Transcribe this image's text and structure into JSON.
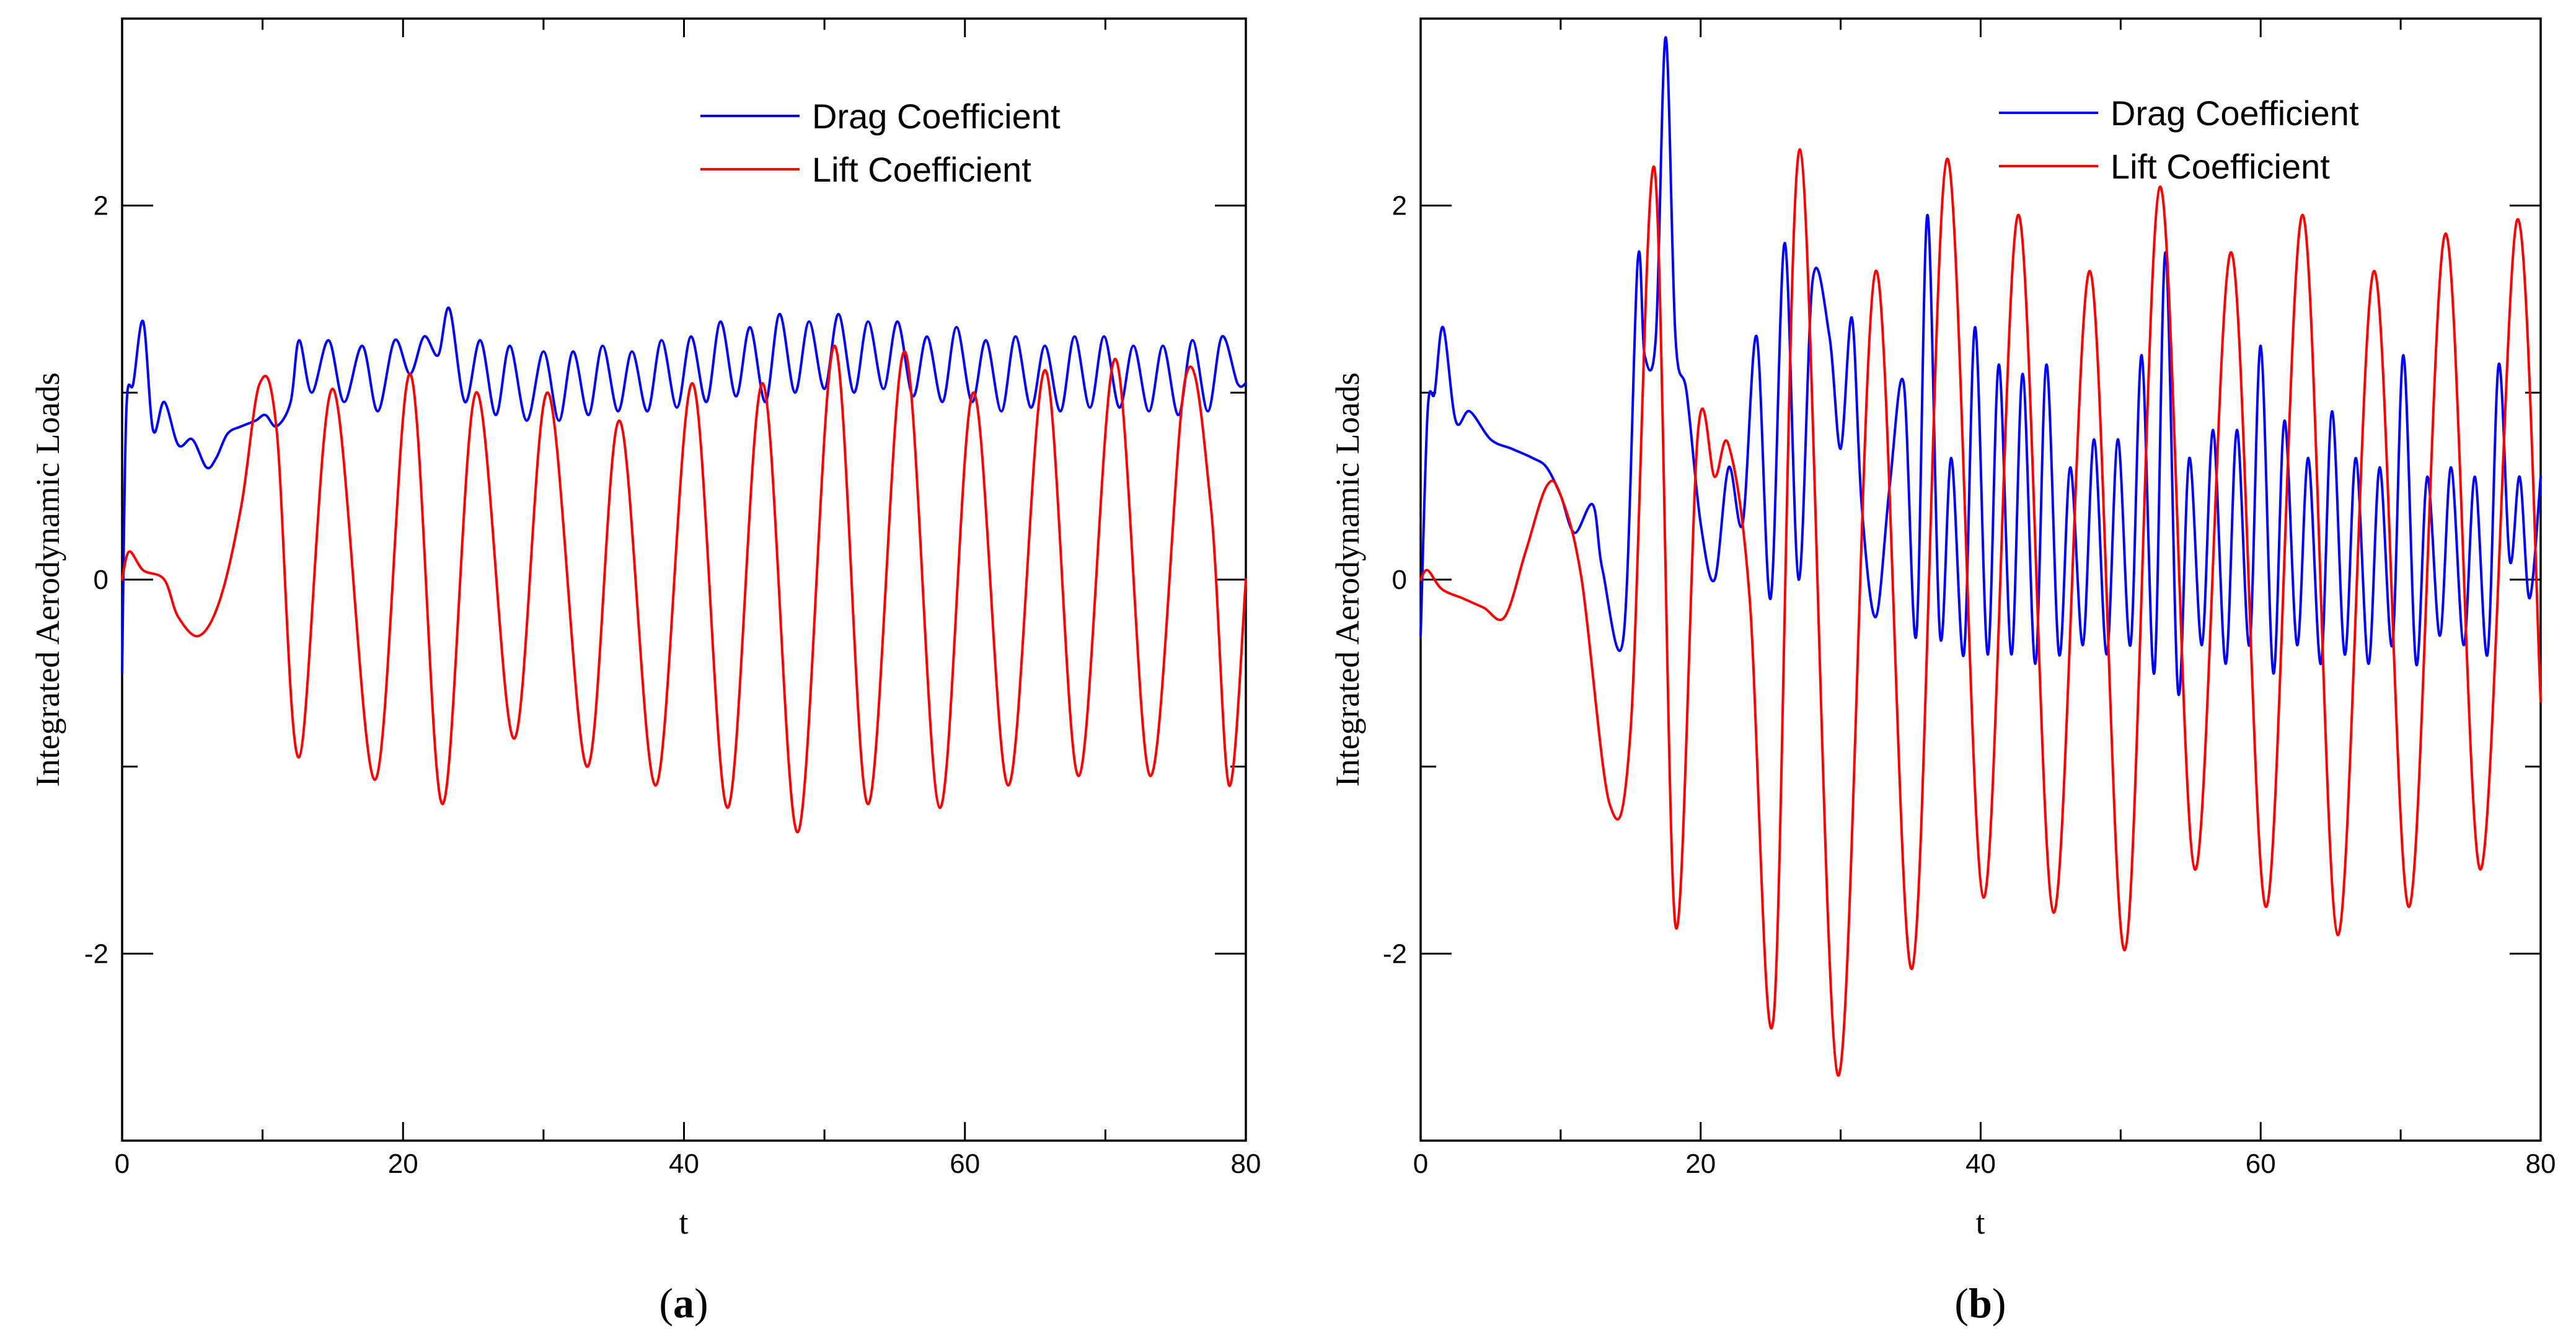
{
  "chart_data": [
    {
      "type": "line",
      "panel_label": "a",
      "xlabel": "t",
      "ylabel": "Integrated Aerodynamic Loads",
      "xlim": [
        0,
        80
      ],
      "ylim": [
        -3,
        3
      ],
      "xticks": [
        0,
        20,
        40,
        60,
        80
      ],
      "yticks": [
        -2,
        0,
        2
      ],
      "legend_position": "top-right",
      "series": [
        {
          "name": "Drag Coefficient",
          "color": "#0000ff",
          "x": [
            0,
            0.3,
            0.8,
            1.5,
            2.2,
            3,
            4,
            5,
            6,
            6.7,
            7.5,
            8.5,
            9.5,
            10.2,
            11,
            12,
            12.6,
            13.5,
            14.7,
            15.8,
            17.1,
            18.2,
            19.4,
            20.5,
            21.5,
            22.5,
            23.3,
            24.4,
            25.5,
            26.6,
            27.6,
            28.8,
            30,
            31.1,
            32.1,
            33.2,
            34.2,
            35.3,
            36.3,
            37.4,
            38.4,
            39.5,
            40.5,
            41.6,
            42.6,
            43.7,
            44.7,
            45.8,
            46.8,
            47.9,
            48.9,
            50,
            51,
            52.1,
            53.1,
            54.2,
            55.2,
            56.3,
            57.3,
            58.4,
            59.4,
            60.5,
            61.5,
            62.6,
            63.6,
            64.7,
            65.7,
            66.8,
            67.8,
            68.9,
            69.9,
            71,
            72,
            73.1,
            74.1,
            75.2,
            76.2,
            77.3,
            78.3,
            79.4,
            80
          ],
          "y": [
            -0.5,
            0.9,
            1.05,
            1.38,
            0.8,
            0.95,
            0.72,
            0.75,
            0.6,
            0.65,
            0.78,
            0.82,
            0.85,
            0.88,
            0.82,
            0.95,
            1.28,
            1.0,
            1.28,
            0.95,
            1.25,
            0.9,
            1.28,
            1.1,
            1.3,
            1.2,
            1.45,
            0.95,
            1.28,
            0.88,
            1.25,
            0.85,
            1.22,
            0.85,
            1.22,
            0.88,
            1.25,
            0.9,
            1.22,
            0.9,
            1.28,
            0.92,
            1.3,
            0.95,
            1.38,
            0.98,
            1.35,
            0.95,
            1.42,
            1.0,
            1.38,
            1.02,
            1.42,
            1.0,
            1.38,
            1.02,
            1.38,
            0.98,
            1.3,
            0.95,
            1.35,
            0.95,
            1.28,
            0.9,
            1.3,
            0.92,
            1.25,
            0.9,
            1.3,
            0.92,
            1.3,
            0.92,
            1.25,
            0.9,
            1.25,
            0.88,
            1.28,
            0.9,
            1.3,
            1.05,
            1.05
          ]
        },
        {
          "name": "Lift Coefficient",
          "color": "#ff0000",
          "x": [
            0,
            0.5,
            1.5,
            3,
            4,
            5.5,
            7,
            8.5,
            9.8,
            11,
            12.6,
            15,
            18,
            20.5,
            22.8,
            25.2,
            27.9,
            30.3,
            33.1,
            35.4,
            38,
            40.6,
            43.1,
            45.6,
            48.1,
            50.7,
            53.1,
            55.7,
            58.2,
            60.6,
            63.1,
            65.7,
            68.1,
            70.7,
            73.2,
            75.7,
            77.5,
            78.8,
            80
          ],
          "y": [
            0,
            0.15,
            0.05,
            0.0,
            -0.2,
            -0.3,
            -0.1,
            0.4,
            1.05,
            0.8,
            -0.95,
            1.02,
            -1.07,
            1.1,
            -1.2,
            1.0,
            -0.85,
            1.0,
            -1.0,
            0.85,
            -1.1,
            1.05,
            -1.22,
            1.05,
            -1.35,
            1.25,
            -1.2,
            1.22,
            -1.22,
            1.0,
            -1.1,
            1.12,
            -1.05,
            1.18,
            -1.05,
            1.08,
            0.4,
            -1.1,
            0.0
          ]
        }
      ]
    },
    {
      "type": "line",
      "panel_label": "b",
      "xlabel": "t",
      "ylabel": "Integrated Aerodynamic Loads",
      "xlim": [
        0,
        80
      ],
      "ylim": [
        -3,
        3
      ],
      "xticks": [
        0,
        20,
        40,
        60,
        80
      ],
      "yticks": [
        -2,
        0,
        2
      ],
      "legend_position": "top-right",
      "series": [
        {
          "name": "Drag Coefficient",
          "color": "#0000ff",
          "x": [
            0,
            0.5,
            1,
            1.6,
            2.5,
            3.5,
            5,
            6.5,
            8,
            9,
            10,
            11,
            12.3,
            13,
            14.5,
            15.5,
            16,
            16.8,
            17.5,
            18.2,
            19,
            20,
            21,
            22,
            23,
            24,
            25,
            26,
            27,
            28,
            29.2,
            30,
            30.8,
            31.5,
            32.5,
            33.5,
            34.5,
            35.4,
            36.2,
            37.1,
            37.9,
            38.8,
            39.6,
            40.5,
            41.3,
            42.2,
            43,
            43.9,
            44.7,
            45.6,
            46.4,
            47.3,
            48.1,
            49,
            49.8,
            50.7,
            51.5,
            52.4,
            53.2,
            54.1,
            54.9,
            55.8,
            56.6,
            57.5,
            58.3,
            59.2,
            60,
            60.9,
            61.7,
            62.6,
            63.4,
            64.3,
            65.1,
            66,
            66.8,
            67.7,
            68.5,
            69.4,
            70.2,
            71.1,
            71.9,
            72.8,
            73.6,
            74.5,
            75.3,
            76.2,
            77,
            77.8,
            78.5,
            79.2,
            80
          ],
          "y": [
            -0.3,
            0.9,
            1.0,
            1.35,
            0.85,
            0.9,
            0.75,
            0.7,
            0.65,
            0.6,
            0.45,
            0.25,
            0.4,
            0.05,
            -0.3,
            1.7,
            1.2,
            1.3,
            2.9,
            1.3,
            1.0,
            0.3,
            0.0,
            0.6,
            0.3,
            1.3,
            -0.1,
            1.8,
            0.0,
            1.6,
            1.3,
            0.7,
            1.4,
            0.4,
            -0.2,
            0.5,
            1.05,
            -0.3,
            1.95,
            -0.3,
            0.65,
            -0.4,
            1.35,
            -0.4,
            1.15,
            -0.4,
            1.1,
            -0.45,
            1.15,
            -0.4,
            0.6,
            -0.35,
            0.75,
            -0.4,
            0.75,
            -0.35,
            1.2,
            -0.5,
            1.75,
            -0.6,
            0.65,
            -0.35,
            0.8,
            -0.45,
            0.8,
            -0.35,
            1.25,
            -0.5,
            0.85,
            -0.35,
            0.65,
            -0.45,
            0.9,
            -0.4,
            0.65,
            -0.45,
            0.6,
            -0.35,
            1.2,
            -0.45,
            0.55,
            -0.3,
            0.6,
            -0.35,
            0.55,
            -0.4,
            1.15,
            0.1,
            0.55,
            -0.1,
            0.55
          ]
        },
        {
          "name": "Lift Coefficient",
          "color": "#ff0000",
          "x": [
            0,
            0.5,
            1.5,
            3,
            4.5,
            6,
            7.5,
            9,
            10,
            11.5,
            13.5,
            15,
            16.7,
            18.2,
            19.8,
            21,
            22,
            23.5,
            25.2,
            27.1,
            29.8,
            32.5,
            35.1,
            37.6,
            40.2,
            42.7,
            45.2,
            47.8,
            50.3,
            52.8,
            55.3,
            57.9,
            60.4,
            63,
            65.5,
            68.1,
            70.6,
            73.2,
            75.7,
            78.3,
            80
          ],
          "y": [
            0,
            0.05,
            -0.05,
            -0.1,
            -0.15,
            -0.2,
            0.15,
            0.5,
            0.45,
            0.0,
            -1.2,
            -0.8,
            2.2,
            -1.85,
            0.78,
            0.55,
            0.72,
            -0.1,
            -2.35,
            2.3,
            -2.65,
            1.65,
            -2.08,
            2.25,
            -1.7,
            1.95,
            -1.78,
            1.65,
            -1.98,
            2.1,
            -1.55,
            1.75,
            -1.75,
            1.95,
            -1.9,
            1.65,
            -1.75,
            1.85,
            -1.55,
            1.92,
            -0.65
          ]
        }
      ]
    }
  ]
}
